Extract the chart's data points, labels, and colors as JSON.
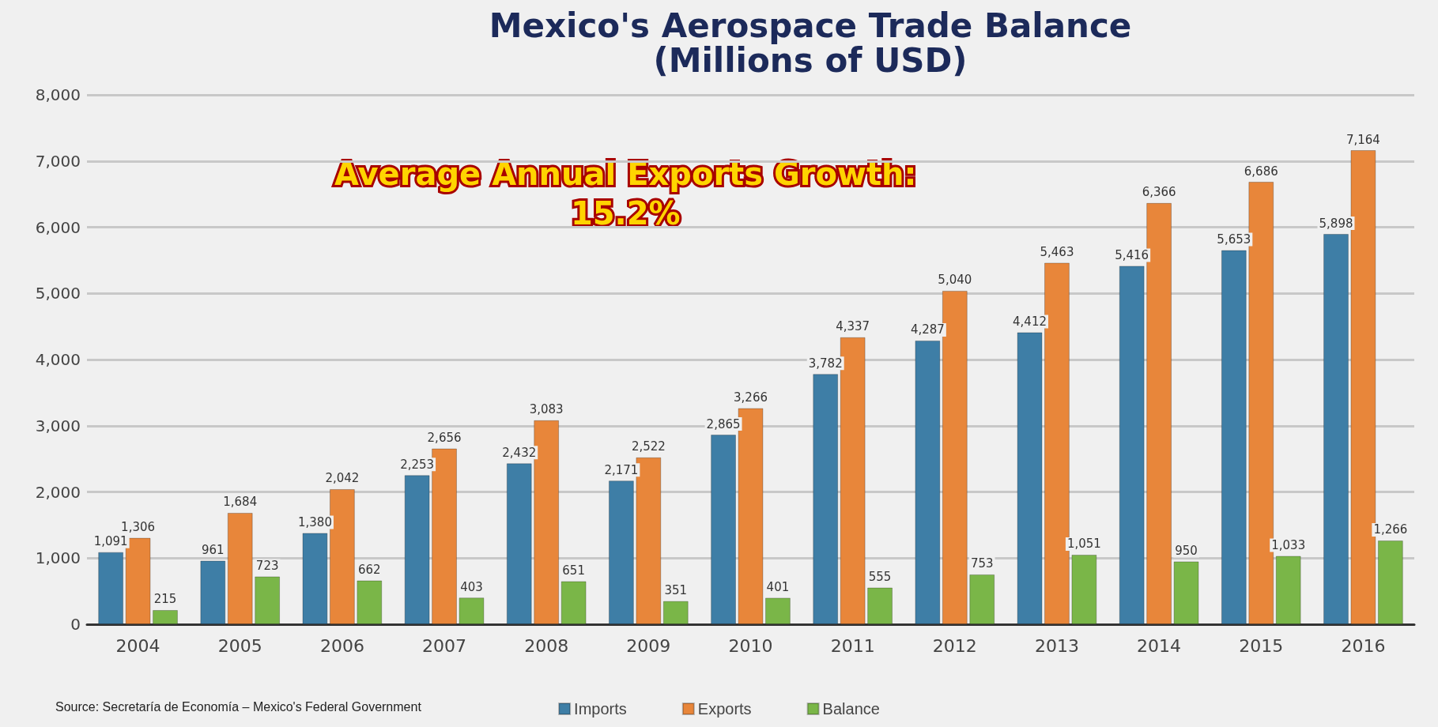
{
  "chart_data": {
    "type": "bar",
    "title": "Mexico's Aerospace Trade Balance",
    "subtitle": "(Millions of USD)",
    "categories": [
      "2004",
      "2005",
      "2006",
      "2007",
      "2008",
      "2009",
      "2010",
      "2011",
      "2012",
      "2013",
      "2014",
      "2015",
      "2016"
    ],
    "series": [
      {
        "name": "Imports",
        "color": "#3e7ea6",
        "values": [
          1091,
          961,
          1380,
          2253,
          2432,
          2171,
          2865,
          3782,
          4287,
          4412,
          5416,
          5653,
          5898
        ],
        "value_labels": [
          "1,091",
          "961",
          "1,380",
          "2,253",
          "2,432",
          "2,171",
          "2,865",
          "3,782",
          "4,287",
          "4,412",
          "5,416",
          "5,653",
          "5,898"
        ]
      },
      {
        "name": "Exports",
        "color": "#e8863a",
        "values": [
          1306,
          1684,
          2042,
          2656,
          3083,
          2522,
          3266,
          4337,
          5040,
          5463,
          6366,
          6686,
          7164
        ],
        "value_labels": [
          "1,306",
          "1,684",
          "2,042",
          "2,656",
          "3,083",
          "2,522",
          "3,266",
          "4,337",
          "5,040",
          "5,463",
          "6,366",
          "6,686",
          "7,164"
        ]
      },
      {
        "name": "Balance",
        "color": "#7ab648",
        "values": [
          215,
          723,
          662,
          403,
          651,
          351,
          401,
          555,
          753,
          1051,
          950,
          1033,
          1266
        ],
        "value_labels": [
          "215",
          "723",
          "662",
          "403",
          "651",
          "351",
          "401",
          "555",
          "753",
          "1,051",
          "950",
          "1,033",
          "1,266"
        ]
      }
    ],
    "ylim": [
      0,
      8000
    ],
    "yticks": [
      {
        "value": 0,
        "label": "0"
      },
      {
        "value": 1000,
        "label": "1,000"
      },
      {
        "value": 2000,
        "label": "2,000"
      },
      {
        "value": 3000,
        "label": "3,000"
      },
      {
        "value": 4000,
        "label": "4,000"
      },
      {
        "value": 5000,
        "label": "5,000"
      },
      {
        "value": 6000,
        "label": "6,000"
      },
      {
        "value": 7000,
        "label": "7,000"
      },
      {
        "value": 8000,
        "label": "8,000"
      }
    ],
    "grid": "y",
    "legend": "bottom",
    "annotations": [
      "Average Annual Exports Growth:\n15.2%",
      "Source: Secretaría de Economía – Mexico's Federal Government"
    ]
  }
}
